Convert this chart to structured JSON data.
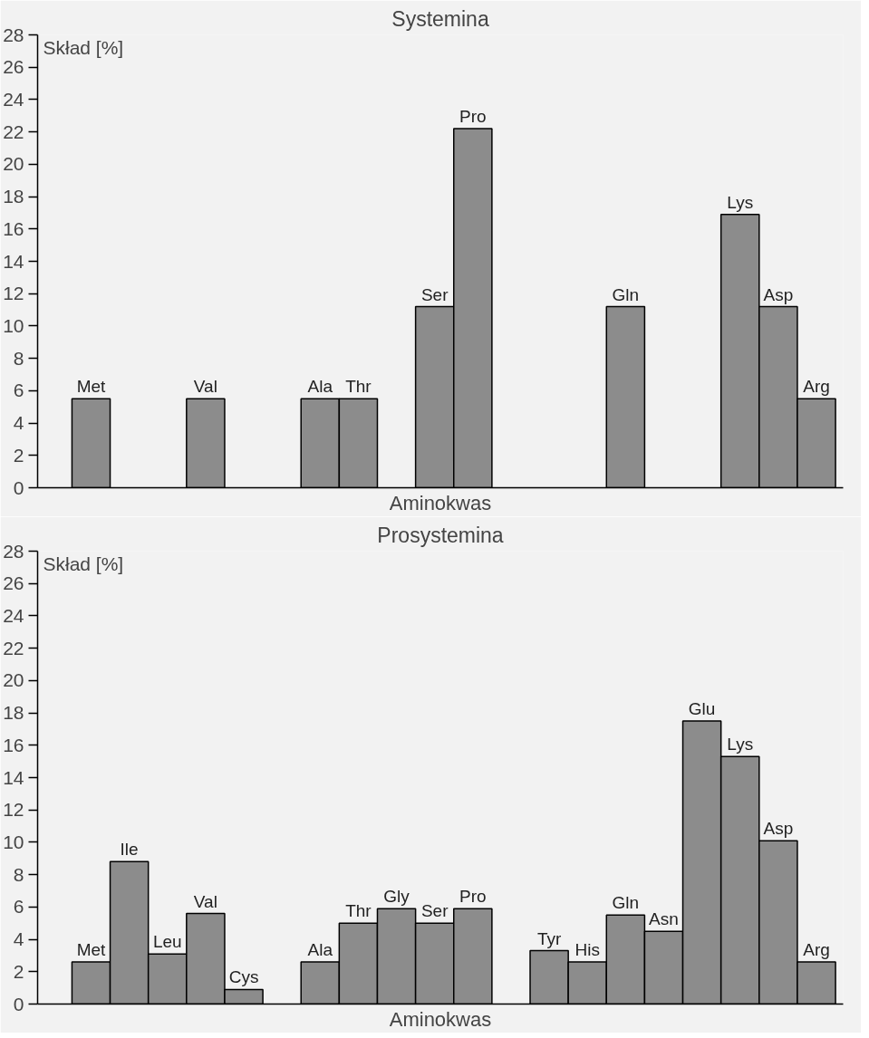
{
  "chart_data": [
    {
      "type": "bar",
      "title": "Systemina",
      "xlabel": "Aminokwas",
      "ylabel": "Skład [%]",
      "categories": [
        "Met",
        null,
        null,
        "Val",
        null,
        null,
        "Ala",
        "Thr",
        null,
        "Ser",
        "Pro",
        null,
        null,
        null,
        "Gln",
        null,
        null,
        "Lys",
        "Asp",
        "Arg"
      ],
      "series": [
        {
          "color": "#8c8c8c",
          "values": [
            5.5,
            null,
            null,
            5.5,
            null,
            null,
            5.5,
            5.5,
            null,
            11.2,
            22.2,
            null,
            null,
            null,
            11.2,
            null,
            null,
            16.9,
            11.2,
            5.5
          ]
        }
      ],
      "ylim": [
        0,
        28
      ],
      "yticks": [
        0,
        2,
        4,
        6,
        8,
        10,
        12,
        14,
        16,
        18,
        20,
        22,
        24,
        26,
        28
      ],
      "grid": false
    },
    {
      "type": "bar",
      "title": "Prosystemina",
      "xlabel": "Aminokwas",
      "ylabel": "Skład [%]",
      "categories": [
        "Met",
        "Ile",
        "Leu",
        "Val",
        "Cys",
        null,
        "Ala",
        "Thr",
        "Gly",
        "Ser",
        "Pro",
        null,
        "Tyr",
        "His",
        "Gln",
        "Asn",
        "Glu",
        "Lys",
        "Asp",
        "Arg"
      ],
      "series": [
        {
          "color": "#8c8c8c",
          "values": [
            2.6,
            8.8,
            3.1,
            5.6,
            0.9,
            null,
            2.6,
            5.0,
            5.9,
            5.0,
            5.9,
            null,
            3.3,
            2.6,
            5.5,
            4.5,
            17.5,
            15.3,
            10.1,
            2.6
          ]
        }
      ],
      "ylim": [
        0,
        28
      ],
      "yticks": [
        0,
        2,
        4,
        6,
        8,
        10,
        12,
        14,
        16,
        18,
        20,
        22,
        24,
        26,
        28
      ],
      "grid": false
    }
  ]
}
